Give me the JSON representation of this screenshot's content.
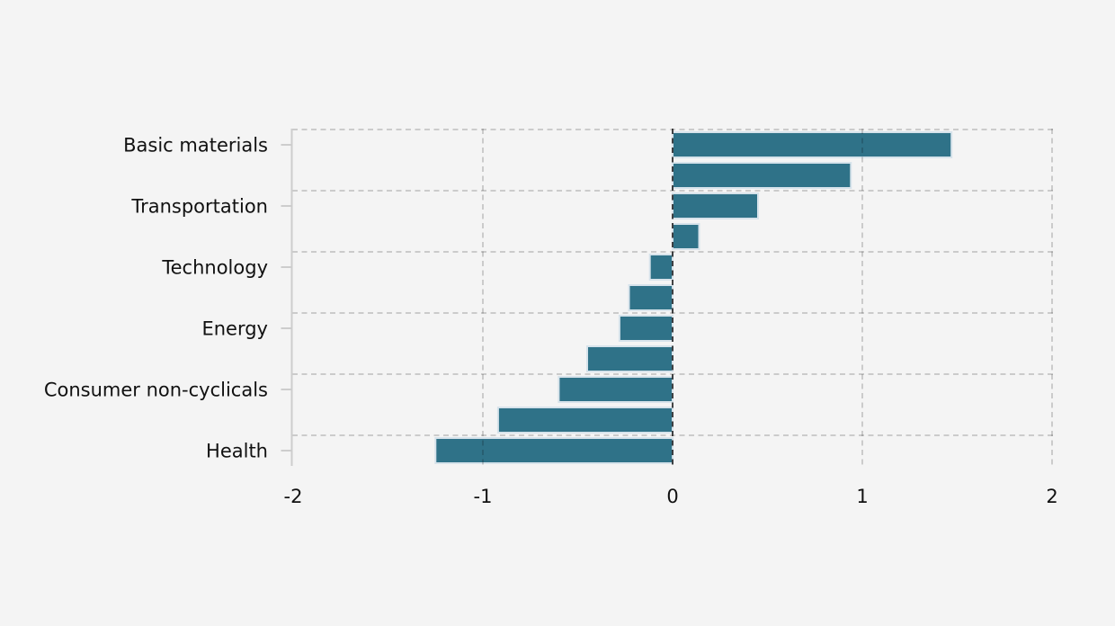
{
  "chart_data": {
    "type": "bar",
    "orientation": "horizontal",
    "title": "",
    "xlabel": "",
    "ylabel": "",
    "xlim": [
      -2,
      2
    ],
    "xtick_values": [
      -2,
      -1,
      0,
      1,
      2
    ],
    "xtick_labels": [
      "-2",
      "-1",
      "0",
      "1",
      "2"
    ],
    "grid": "dashed horizontal separators every two bars; dashed vertical lines at each x tick; darker dashed line at zero",
    "legend_position": "none",
    "bars": [
      {
        "label": "Basic materials",
        "value": 1.47
      },
      {
        "label": "",
        "value": 0.94
      },
      {
        "label": "Transportation",
        "value": 0.45
      },
      {
        "label": "",
        "value": 0.14
      },
      {
        "label": "Technology",
        "value": -0.12
      },
      {
        "label": "",
        "value": -0.23
      },
      {
        "label": "Energy",
        "value": -0.28
      },
      {
        "label": "",
        "value": -0.45
      },
      {
        "label": "Consumer non-cyclicals",
        "value": -0.6
      },
      {
        "label": "",
        "value": -0.92
      },
      {
        "label": "Health",
        "value": -1.25
      }
    ],
    "colors": {
      "background": "#f4f4f4",
      "bar_fill": "#2f7288",
      "bar_edge": "#d7e3eb",
      "grid_line": "rgba(0,0,0,0.17)",
      "zero_line": "rgba(0,0,0,0.72)",
      "axis_line": "#cdcdcd",
      "text": "#111111"
    }
  }
}
